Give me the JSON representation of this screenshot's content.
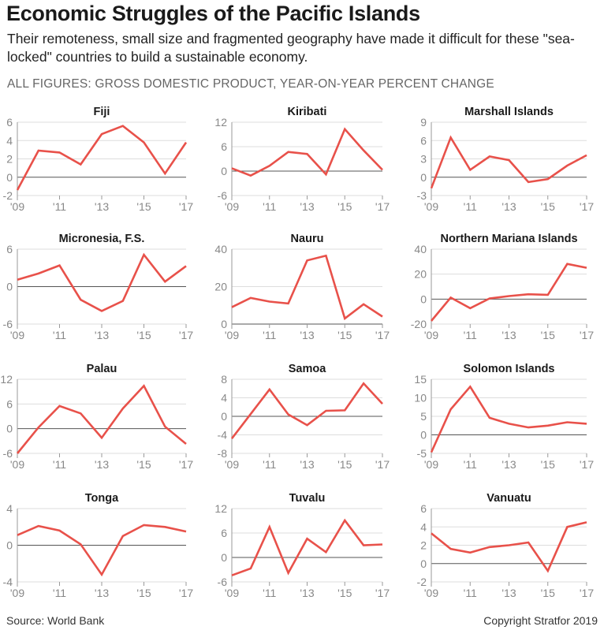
{
  "header": {
    "title": "Economic Struggles of the Pacific Islands",
    "subtitle": "Their remoteness, small size and fragmented geography have made it difficult for these \"sea-locked\" countries to build a sustainable economy.",
    "figures_label": "ALL FIGURES: GROSS DOMESTIC PRODUCT, YEAR-ON-YEAR PERCENT CHANGE"
  },
  "footer": {
    "source": "Source: World Bank",
    "copyright": "Copyright Stratfor 2019"
  },
  "colors": {
    "line": "#e8514a",
    "axis": "#999999",
    "grid": "#dddddd",
    "zero": "#555555",
    "tick_text": "#888888"
  },
  "chart_data": [
    {
      "type": "line",
      "title": "Fiji",
      "x": [
        2009,
        2010,
        2011,
        2012,
        2013,
        2014,
        2015,
        2016,
        2017
      ],
      "x_tick_labels": [
        "'09",
        "'11",
        "'13",
        "'15",
        "'17"
      ],
      "ylim": [
        -2,
        6
      ],
      "yticks": [
        -2,
        0,
        2,
        4,
        6
      ],
      "series": [
        {
          "values": [
            -1.4,
            2.9,
            2.7,
            1.4,
            4.7,
            5.6,
            3.8,
            0.4,
            3.8
          ]
        }
      ]
    },
    {
      "type": "line",
      "title": "Kiribati",
      "x": [
        2009,
        2010,
        2011,
        2012,
        2013,
        2014,
        2015,
        2016,
        2017
      ],
      "x_tick_labels": [
        "'09",
        "'11",
        "'13",
        "'15",
        "'17"
      ],
      "ylim": [
        -6,
        12
      ],
      "yticks": [
        -6,
        0,
        6,
        12
      ],
      "series": [
        {
          "values": [
            0.7,
            -1.1,
            1.3,
            4.7,
            4.2,
            -0.8,
            10.3,
            5.1,
            0.3
          ]
        }
      ]
    },
    {
      "type": "line",
      "title": "Marshall Islands",
      "x": [
        2009,
        2010,
        2011,
        2012,
        2013,
        2014,
        2015,
        2016,
        2017
      ],
      "x_tick_labels": [
        "'09",
        "'11",
        "'13",
        "'15",
        "'17"
      ],
      "ylim": [
        -3,
        9
      ],
      "yticks": [
        -3,
        0,
        3,
        6,
        9
      ],
      "series": [
        {
          "values": [
            -1.8,
            6.5,
            1.2,
            3.4,
            2.8,
            -0.8,
            -0.3,
            1.9,
            3.6
          ]
        }
      ]
    },
    {
      "type": "line",
      "title": "Micronesia, F.S.",
      "x": [
        2009,
        2010,
        2011,
        2012,
        2013,
        2014,
        2015,
        2016,
        2017
      ],
      "x_tick_labels": [
        "'09",
        "'11",
        "'13",
        "'15",
        "'17"
      ],
      "ylim": [
        -6,
        6
      ],
      "yticks": [
        -6,
        0,
        6
      ],
      "series": [
        {
          "values": [
            1.1,
            2.1,
            3.4,
            -2.1,
            -3.9,
            -2.3,
            5.1,
            0.8,
            3.3
          ]
        }
      ]
    },
    {
      "type": "line",
      "title": "Nauru",
      "x": [
        2009,
        2010,
        2011,
        2012,
        2013,
        2014,
        2015,
        2016,
        2017
      ],
      "x_tick_labels": [
        "'09",
        "'11",
        "'13",
        "'15",
        "'17"
      ],
      "ylim": [
        0,
        40
      ],
      "yticks": [
        0,
        20,
        40
      ],
      "series": [
        {
          "values": [
            9,
            14,
            12,
            11,
            34,
            36.5,
            3,
            10.6,
            4
          ]
        }
      ]
    },
    {
      "type": "line",
      "title": "Northern Mariana Islands",
      "x": [
        2009,
        2010,
        2011,
        2012,
        2013,
        2014,
        2015,
        2016,
        2017
      ],
      "x_tick_labels": [
        "'09",
        "'11",
        "'13",
        "'15",
        "'17"
      ],
      "ylim": [
        -20,
        40
      ],
      "yticks": [
        -20,
        0,
        20,
        40
      ],
      "series": [
        {
          "values": [
            -17.5,
            1.2,
            -7.3,
            0.5,
            2.4,
            3.9,
            3.4,
            28.2,
            25.1
          ]
        }
      ]
    },
    {
      "type": "line",
      "title": "Palau",
      "x": [
        2009,
        2010,
        2011,
        2012,
        2013,
        2014,
        2015,
        2016,
        2017
      ],
      "x_tick_labels": [
        "'09",
        "'11",
        "'13",
        "'15",
        "'17"
      ],
      "ylim": [
        -6,
        12
      ],
      "yticks": [
        -6,
        0,
        6,
        12
      ],
      "series": [
        {
          "values": [
            -6.0,
            0.3,
            5.5,
            3.7,
            -2.2,
            4.9,
            10.4,
            0.5,
            -3.7
          ]
        }
      ]
    },
    {
      "type": "line",
      "title": "Samoa",
      "x": [
        2009,
        2010,
        2011,
        2012,
        2013,
        2014,
        2015,
        2016,
        2017
      ],
      "x_tick_labels": [
        "'09",
        "'11",
        "'13",
        "'15",
        "'17"
      ],
      "ylim": [
        -8,
        8
      ],
      "yticks": [
        -8,
        -4,
        0,
        4,
        8
      ],
      "series": [
        {
          "values": [
            -4.8,
            0.5,
            5.8,
            0.4,
            -1.9,
            1.2,
            1.3,
            7.1,
            2.7
          ]
        }
      ]
    },
    {
      "type": "line",
      "title": "Solomon Islands",
      "x": [
        2009,
        2010,
        2011,
        2012,
        2013,
        2014,
        2015,
        2016,
        2017
      ],
      "x_tick_labels": [
        "'09",
        "'11",
        "'13",
        "'15",
        "'17"
      ],
      "ylim": [
        -5,
        15
      ],
      "yticks": [
        -5,
        0,
        5,
        10,
        15
      ],
      "series": [
        {
          "values": [
            -4.7,
            6.9,
            13.0,
            4.6,
            3.0,
            2.0,
            2.5,
            3.4,
            3.0
          ]
        }
      ]
    },
    {
      "type": "line",
      "title": "Tonga",
      "x": [
        2009,
        2010,
        2011,
        2012,
        2013,
        2014,
        2015,
        2016,
        2017
      ],
      "x_tick_labels": [
        "'09",
        "'11",
        "'13",
        "'15",
        "'17"
      ],
      "ylim": [
        -4,
        4
      ],
      "yticks": [
        -4,
        0,
        4
      ],
      "series": [
        {
          "values": [
            1.1,
            2.1,
            1.6,
            0.1,
            -3.2,
            1.0,
            2.2,
            2.0,
            1.5
          ]
        }
      ]
    },
    {
      "type": "line",
      "title": "Tuvalu",
      "x": [
        2009,
        2010,
        2011,
        2012,
        2013,
        2014,
        2015,
        2016,
        2017
      ],
      "x_tick_labels": [
        "'09",
        "'11",
        "'13",
        "'15",
        "'17"
      ],
      "ylim": [
        -6,
        12
      ],
      "yticks": [
        -6,
        0,
        6,
        12
      ],
      "series": [
        {
          "values": [
            -4.4,
            -2.7,
            7.5,
            -3.8,
            4.6,
            1.3,
            9.1,
            3.0,
            3.2
          ]
        }
      ]
    },
    {
      "type": "line",
      "title": "Vanuatu",
      "x": [
        2009,
        2010,
        2011,
        2012,
        2013,
        2014,
        2015,
        2016,
        2017
      ],
      "x_tick_labels": [
        "'09",
        "'11",
        "'13",
        "'15",
        "'17"
      ],
      "ylim": [
        -2,
        6
      ],
      "yticks": [
        -2,
        0,
        2,
        4,
        6
      ],
      "series": [
        {
          "values": [
            3.3,
            1.6,
            1.2,
            1.8,
            2.0,
            2.3,
            -0.8,
            4.0,
            4.5
          ]
        }
      ]
    }
  ]
}
